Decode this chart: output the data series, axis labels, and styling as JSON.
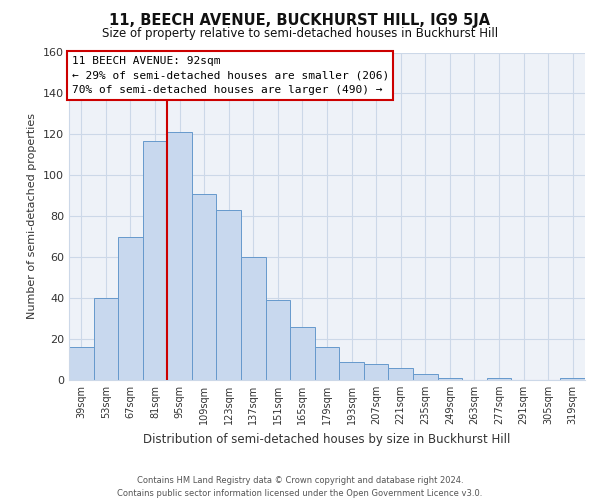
{
  "title": "11, BEECH AVENUE, BUCKHURST HILL, IG9 5JA",
  "subtitle": "Size of property relative to semi-detached houses in Buckhurst Hill",
  "xlabel": "Distribution of semi-detached houses by size in Buckhurst Hill",
  "ylabel": "Number of semi-detached properties",
  "categories": [
    "39sqm",
    "53sqm",
    "67sqm",
    "81sqm",
    "95sqm",
    "109sqm",
    "123sqm",
    "137sqm",
    "151sqm",
    "165sqm",
    "179sqm",
    "193sqm",
    "207sqm",
    "221sqm",
    "235sqm",
    "249sqm",
    "263sqm",
    "277sqm",
    "291sqm",
    "305sqm",
    "319sqm"
  ],
  "values": [
    16,
    40,
    70,
    117,
    121,
    91,
    83,
    60,
    39,
    26,
    16,
    9,
    8,
    6,
    3,
    1,
    0,
    1,
    0,
    0,
    1
  ],
  "bar_color": "#c8d8ee",
  "bar_edge_color": "#6699cc",
  "vline_x": 3.5,
  "vline_color": "#cc0000",
  "ylim": [
    0,
    160
  ],
  "yticks": [
    0,
    20,
    40,
    60,
    80,
    100,
    120,
    140,
    160
  ],
  "annotation_title": "11 BEECH AVENUE: 92sqm",
  "annotation_line1": "← 29% of semi-detached houses are smaller (206)",
  "annotation_line2": "70% of semi-detached houses are larger (490) →",
  "annotation_box_color": "#ffffff",
  "annotation_box_edge": "#cc0000",
  "footer_line1": "Contains HM Land Registry data © Crown copyright and database right 2024.",
  "footer_line2": "Contains public sector information licensed under the Open Government Licence v3.0.",
  "background_color": "#ffffff",
  "grid_color": "#ccd8e8",
  "plot_bg_color": "#eef2f8"
}
